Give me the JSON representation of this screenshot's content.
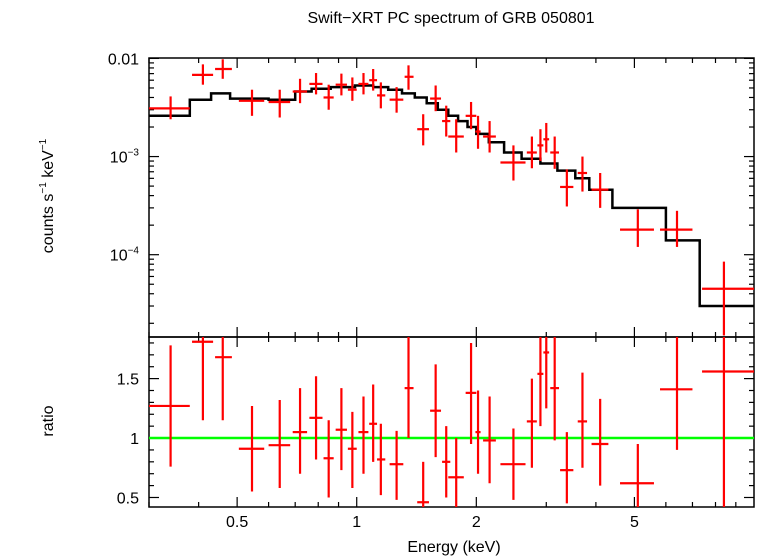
{
  "title": "Swift−XRT PC spectrum of GRB 050801",
  "colors": {
    "data": "#ff0000",
    "model": "#000000",
    "unity": "#00ff00",
    "frame": "#000000"
  },
  "chart_data": [
    {
      "type": "scatter",
      "panel": "spectrum",
      "ylabel_parts": [
        "counts s",
        "−1",
        " keV",
        "−1"
      ],
      "xscale": "log",
      "yscale": "log",
      "xlim": [
        0.3,
        10.0
      ],
      "ylim": [
        1.45e-05,
        0.0101
      ],
      "yticks": [
        {
          "value": 0.01,
          "label": "0.01",
          "exp": ""
        },
        {
          "value": 0.001,
          "label": "10",
          "exp": "−3"
        },
        {
          "value": 0.0001,
          "label": "10",
          "exp": "−4"
        }
      ],
      "points": [
        {
          "x": 0.34,
          "xlo": 0.3,
          "xhi": 0.38,
          "y": 0.0031,
          "ylo": 0.0024,
          "yhi": 0.0041
        },
        {
          "x": 0.41,
          "xlo": 0.385,
          "xhi": 0.435,
          "y": 0.0068,
          "ylo": 0.0054,
          "yhi": 0.0087
        },
        {
          "x": 0.46,
          "xlo": 0.44,
          "xhi": 0.485,
          "y": 0.0078,
          "ylo": 0.0062,
          "yhi": 0.0098
        },
        {
          "x": 0.545,
          "xlo": 0.505,
          "xhi": 0.585,
          "y": 0.0037,
          "ylo": 0.0026,
          "yhi": 0.0048
        },
        {
          "x": 0.64,
          "xlo": 0.6,
          "xhi": 0.68,
          "y": 0.0036,
          "ylo": 0.0025,
          "yhi": 0.0048
        },
        {
          "x": 0.72,
          "xlo": 0.69,
          "xhi": 0.75,
          "y": 0.0046,
          "ylo": 0.0035,
          "yhi": 0.0062
        },
        {
          "x": 0.79,
          "xlo": 0.76,
          "xhi": 0.82,
          "y": 0.0055,
          "ylo": 0.0043,
          "yhi": 0.0071
        },
        {
          "x": 0.85,
          "xlo": 0.825,
          "xhi": 0.875,
          "y": 0.004,
          "ylo": 0.003,
          "yhi": 0.0054
        },
        {
          "x": 0.915,
          "xlo": 0.885,
          "xhi": 0.945,
          "y": 0.0054,
          "ylo": 0.0042,
          "yhi": 0.007
        },
        {
          "x": 0.975,
          "xlo": 0.95,
          "xhi": 1.0,
          "y": 0.0048,
          "ylo": 0.0037,
          "yhi": 0.0064
        },
        {
          "x": 1.04,
          "xlo": 1.01,
          "xhi": 1.07,
          "y": 0.0055,
          "ylo": 0.0043,
          "yhi": 0.0071
        },
        {
          "x": 1.1,
          "xlo": 1.075,
          "xhi": 1.125,
          "y": 0.006,
          "ylo": 0.0047,
          "yhi": 0.0078
        },
        {
          "x": 1.15,
          "xlo": 1.125,
          "xhi": 1.18,
          "y": 0.0042,
          "ylo": 0.0031,
          "yhi": 0.0057
        },
        {
          "x": 1.26,
          "xlo": 1.21,
          "xhi": 1.31,
          "y": 0.0038,
          "ylo": 0.0028,
          "yhi": 0.0051
        },
        {
          "x": 1.35,
          "xlo": 1.32,
          "xhi": 1.39,
          "y": 0.0065,
          "ylo": 0.0048,
          "yhi": 0.0085
        },
        {
          "x": 1.47,
          "xlo": 1.42,
          "xhi": 1.52,
          "y": 0.0019,
          "ylo": 0.0013,
          "yhi": 0.0027
        },
        {
          "x": 1.58,
          "xlo": 1.53,
          "xhi": 1.63,
          "y": 0.0039,
          "ylo": 0.0029,
          "yhi": 0.0053
        },
        {
          "x": 1.68,
          "xlo": 1.64,
          "xhi": 1.72,
          "y": 0.0023,
          "ylo": 0.0016,
          "yhi": 0.0033
        },
        {
          "x": 1.78,
          "xlo": 1.7,
          "xhi": 1.86,
          "y": 0.0016,
          "ylo": 0.0011,
          "yhi": 0.0024
        },
        {
          "x": 1.94,
          "xlo": 1.88,
          "xhi": 2.0,
          "y": 0.0026,
          "ylo": 0.0019,
          "yhi": 0.0036
        },
        {
          "x": 2.02,
          "xlo": 1.99,
          "xhi": 2.05,
          "y": 0.0018,
          "ylo": 0.0012,
          "yhi": 0.0026
        },
        {
          "x": 2.16,
          "xlo": 2.08,
          "xhi": 2.24,
          "y": 0.0016,
          "ylo": 0.0011,
          "yhi": 0.0023
        },
        {
          "x": 2.48,
          "xlo": 2.3,
          "xhi": 2.66,
          "y": 0.00087,
          "ylo": 0.00057,
          "yhi": 0.0013
        },
        {
          "x": 2.76,
          "xlo": 2.68,
          "xhi": 2.84,
          "y": 0.0011,
          "ylo": 0.00076,
          "yhi": 0.0016
        },
        {
          "x": 2.9,
          "xlo": 2.85,
          "xhi": 2.95,
          "y": 0.0013,
          "ylo": 0.0009,
          "yhi": 0.0019
        },
        {
          "x": 3.0,
          "xlo": 2.95,
          "xhi": 3.05,
          "y": 0.0015,
          "ylo": 0.0011,
          "yhi": 0.0022
        },
        {
          "x": 3.15,
          "xlo": 3.07,
          "xhi": 3.23,
          "y": 0.0011,
          "ylo": 0.00075,
          "yhi": 0.0016
        },
        {
          "x": 3.38,
          "xlo": 3.25,
          "xhi": 3.51,
          "y": 0.00049,
          "ylo": 0.00031,
          "yhi": 0.00074
        },
        {
          "x": 3.7,
          "xlo": 3.6,
          "xhi": 3.8,
          "y": 0.00068,
          "ylo": 0.00044,
          "yhi": 0.001
        },
        {
          "x": 4.1,
          "xlo": 3.9,
          "xhi": 4.3,
          "y": 0.00046,
          "ylo": 0.0003,
          "yhi": 0.00068
        },
        {
          "x": 5.1,
          "xlo": 4.6,
          "xhi": 5.6,
          "y": 0.00018,
          "ylo": 0.00012,
          "yhi": 0.00029
        },
        {
          "x": 6.4,
          "xlo": 5.8,
          "xhi": 7.0,
          "y": 0.00018,
          "ylo": 0.00012,
          "yhi": 0.00028
        },
        {
          "x": 8.4,
          "xlo": 7.4,
          "xhi": 10.0,
          "y": 4.5e-05,
          "ylo": 1.5e-05,
          "yhi": 8.5e-05
        }
      ],
      "model_steps": [
        {
          "x0": 0.3,
          "x1": 0.38,
          "y": 0.0026
        },
        {
          "x0": 0.38,
          "x1": 0.43,
          "y": 0.0038
        },
        {
          "x0": 0.43,
          "x1": 0.48,
          "y": 0.0044
        },
        {
          "x0": 0.48,
          "x1": 0.6,
          "y": 0.0039
        },
        {
          "x0": 0.6,
          "x1": 0.7,
          "y": 0.0038
        },
        {
          "x0": 0.7,
          "x1": 0.77,
          "y": 0.0046
        },
        {
          "x0": 0.77,
          "x1": 0.86,
          "y": 0.0049
        },
        {
          "x0": 0.86,
          "x1": 0.99,
          "y": 0.0051
        },
        {
          "x0": 0.99,
          "x1": 1.1,
          "y": 0.0053
        },
        {
          "x0": 1.1,
          "x1": 1.2,
          "y": 0.0051
        },
        {
          "x0": 1.2,
          "x1": 1.3,
          "y": 0.0048
        },
        {
          "x0": 1.3,
          "x1": 1.4,
          "y": 0.0044
        },
        {
          "x0": 1.4,
          "x1": 1.5,
          "y": 0.004
        },
        {
          "x0": 1.5,
          "x1": 1.6,
          "y": 0.0035
        },
        {
          "x0": 1.6,
          "x1": 1.7,
          "y": 0.003
        },
        {
          "x0": 1.7,
          "x1": 1.8,
          "y": 0.0026
        },
        {
          "x0": 1.8,
          "x1": 1.9,
          "y": 0.0023
        },
        {
          "x0": 1.9,
          "x1": 2.0,
          "y": 0.002
        },
        {
          "x0": 2.0,
          "x1": 2.15,
          "y": 0.0017
        },
        {
          "x0": 2.15,
          "x1": 2.35,
          "y": 0.0014
        },
        {
          "x0": 2.35,
          "x1": 2.6,
          "y": 0.0011
        },
        {
          "x0": 2.6,
          "x1": 2.9,
          "y": 0.00095
        },
        {
          "x0": 2.9,
          "x1": 3.2,
          "y": 0.00085
        },
        {
          "x0": 3.2,
          "x1": 3.55,
          "y": 0.00072
        },
        {
          "x0": 3.55,
          "x1": 3.85,
          "y": 0.0006
        },
        {
          "x0": 3.85,
          "x1": 4.4,
          "y": 0.00046
        },
        {
          "x0": 4.4,
          "x1": 6.0,
          "y": 0.0003
        },
        {
          "x0": 6.0,
          "x1": 7.3,
          "y": 0.00014
        },
        {
          "x0": 7.3,
          "x1": 10.0,
          "y": 3e-05
        }
      ]
    },
    {
      "type": "scatter",
      "panel": "ratio",
      "xlabel": "Energy (keV)",
      "ylabel": "ratio",
      "xscale": "log",
      "xlim": [
        0.3,
        10.0
      ],
      "ylim": [
        0.42,
        1.85
      ],
      "xticks": [
        {
          "value": 0.5,
          "label": "0.5"
        },
        {
          "value": 1,
          "label": "1"
        },
        {
          "value": 2,
          "label": "2"
        },
        {
          "value": 5,
          "label": "5"
        }
      ],
      "yticks": [
        {
          "value": 0.5,
          "label": "0.5"
        },
        {
          "value": 1,
          "label": "1"
        },
        {
          "value": 1.5,
          "label": "1.5"
        }
      ],
      "reference_line": 1.0,
      "points": [
        {
          "x": 0.34,
          "xlo": 0.3,
          "xhi": 0.38,
          "y": 1.27,
          "ylo": 0.76,
          "yhi": 1.78
        },
        {
          "x": 0.41,
          "xlo": 0.385,
          "xhi": 0.435,
          "y": 1.81,
          "ylo": 1.15,
          "yhi": 1.85
        },
        {
          "x": 0.46,
          "xlo": 0.44,
          "xhi": 0.485,
          "y": 1.68,
          "ylo": 1.15,
          "yhi": 1.85
        },
        {
          "x": 0.545,
          "xlo": 0.505,
          "xhi": 0.585,
          "y": 0.91,
          "ylo": 0.55,
          "yhi": 1.27
        },
        {
          "x": 0.64,
          "xlo": 0.6,
          "xhi": 0.68,
          "y": 0.94,
          "ylo": 0.58,
          "yhi": 1.32
        },
        {
          "x": 0.72,
          "xlo": 0.69,
          "xhi": 0.75,
          "y": 1.05,
          "ylo": 0.7,
          "yhi": 1.42
        },
        {
          "x": 0.79,
          "xlo": 0.76,
          "xhi": 0.82,
          "y": 1.17,
          "ylo": 0.82,
          "yhi": 1.52
        },
        {
          "x": 0.85,
          "xlo": 0.825,
          "xhi": 0.875,
          "y": 0.83,
          "ylo": 0.5,
          "yhi": 1.15
        },
        {
          "x": 0.915,
          "xlo": 0.885,
          "xhi": 0.945,
          "y": 1.07,
          "ylo": 0.73,
          "yhi": 1.42
        },
        {
          "x": 0.975,
          "xlo": 0.95,
          "xhi": 1.0,
          "y": 0.91,
          "ylo": 0.58,
          "yhi": 1.22
        },
        {
          "x": 1.04,
          "xlo": 1.01,
          "xhi": 1.07,
          "y": 1.05,
          "ylo": 0.7,
          "yhi": 1.35
        },
        {
          "x": 1.1,
          "xlo": 1.075,
          "xhi": 1.125,
          "y": 1.12,
          "ylo": 0.8,
          "yhi": 1.45
        },
        {
          "x": 1.15,
          "xlo": 1.125,
          "xhi": 1.18,
          "y": 0.82,
          "ylo": 0.52,
          "yhi": 1.12
        },
        {
          "x": 1.26,
          "xlo": 1.21,
          "xhi": 1.31,
          "y": 0.78,
          "ylo": 0.48,
          "yhi": 1.06
        },
        {
          "x": 1.35,
          "xlo": 1.32,
          "xhi": 1.39,
          "y": 1.42,
          "ylo": 1.0,
          "yhi": 1.85
        },
        {
          "x": 1.47,
          "xlo": 1.42,
          "xhi": 1.52,
          "y": 0.46,
          "ylo": 0.42,
          "yhi": 0.8
        },
        {
          "x": 1.58,
          "xlo": 1.53,
          "xhi": 1.63,
          "y": 1.23,
          "ylo": 0.84,
          "yhi": 1.62
        },
        {
          "x": 1.68,
          "xlo": 1.64,
          "xhi": 1.72,
          "y": 0.8,
          "ylo": 0.5,
          "yhi": 1.1
        },
        {
          "x": 1.78,
          "xlo": 1.7,
          "xhi": 1.86,
          "y": 0.67,
          "ylo": 0.42,
          "yhi": 1.0
        },
        {
          "x": 1.94,
          "xlo": 1.88,
          "xhi": 2.0,
          "y": 1.38,
          "ylo": 0.95,
          "yhi": 1.8
        },
        {
          "x": 2.02,
          "xlo": 1.99,
          "xhi": 2.05,
          "y": 1.05,
          "ylo": 0.7,
          "yhi": 1.4
        },
        {
          "x": 2.16,
          "xlo": 2.08,
          "xhi": 2.24,
          "y": 0.98,
          "ylo": 0.62,
          "yhi": 1.35
        },
        {
          "x": 2.48,
          "xlo": 2.3,
          "xhi": 2.66,
          "y": 0.78,
          "ylo": 0.48,
          "yhi": 1.08
        },
        {
          "x": 2.76,
          "xlo": 2.68,
          "xhi": 2.84,
          "y": 1.14,
          "ylo": 0.75,
          "yhi": 1.5
        },
        {
          "x": 2.9,
          "xlo": 2.85,
          "xhi": 2.95,
          "y": 1.54,
          "ylo": 1.1,
          "yhi": 1.85
        },
        {
          "x": 3.0,
          "xlo": 2.95,
          "xhi": 3.05,
          "y": 1.72,
          "ylo": 1.25,
          "yhi": 1.85
        },
        {
          "x": 3.15,
          "xlo": 3.07,
          "xhi": 3.23,
          "y": 1.42,
          "ylo": 0.98,
          "yhi": 1.85
        },
        {
          "x": 3.38,
          "xlo": 3.25,
          "xhi": 3.51,
          "y": 0.73,
          "ylo": 0.45,
          "yhi": 1.05
        },
        {
          "x": 3.7,
          "xlo": 3.6,
          "xhi": 3.8,
          "y": 1.14,
          "ylo": 0.75,
          "yhi": 1.55
        },
        {
          "x": 4.1,
          "xlo": 3.9,
          "xhi": 4.3,
          "y": 0.95,
          "ylo": 0.6,
          "yhi": 1.33
        },
        {
          "x": 5.1,
          "xlo": 4.6,
          "xhi": 5.6,
          "y": 0.62,
          "ylo": 0.42,
          "yhi": 0.95
        },
        {
          "x": 6.4,
          "xlo": 5.8,
          "xhi": 7.0,
          "y": 1.41,
          "ylo": 0.9,
          "yhi": 1.85
        },
        {
          "x": 8.4,
          "xlo": 7.4,
          "xhi": 10.0,
          "y": 1.56,
          "ylo": 0.42,
          "yhi": 1.85
        }
      ]
    }
  ]
}
